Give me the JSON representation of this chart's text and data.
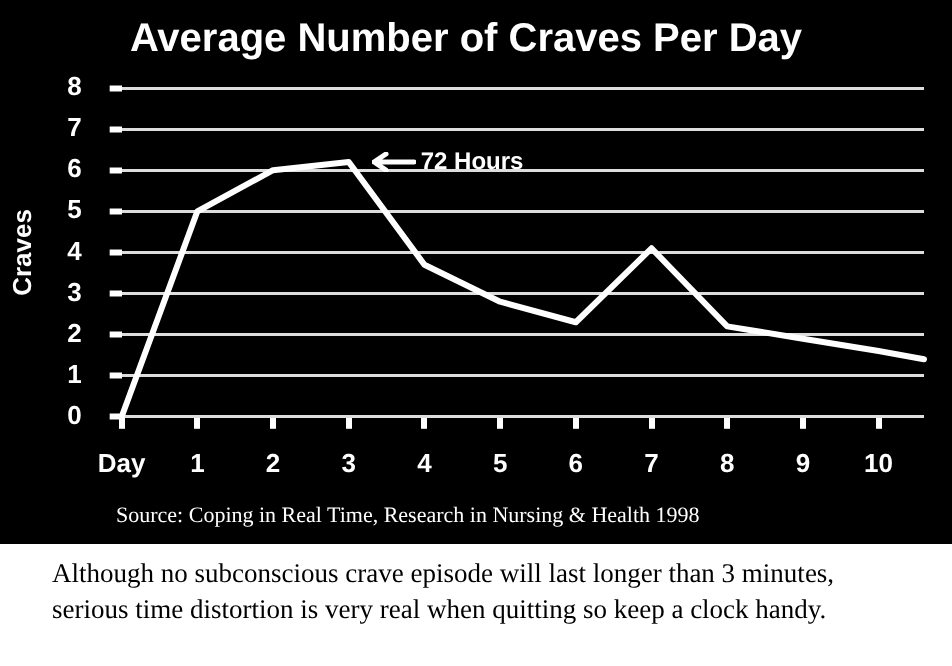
{
  "chart_data": {
    "type": "line",
    "title": "Average Number of Craves Per Day",
    "ylabel": "Craves",
    "x": [
      0,
      1,
      2,
      3,
      4,
      5,
      6,
      7,
      8,
      9,
      10,
      10.6
    ],
    "series": [
      {
        "color": "#ffffff",
        "values": [
          0,
          5.0,
          6.0,
          6.2,
          3.7,
          2.8,
          2.3,
          4.1,
          2.2,
          1.9,
          1.6,
          1.4
        ]
      }
    ],
    "xlim": [
      0,
      10.6
    ],
    "xticks": [
      {
        "value": 0,
        "label": "Day"
      },
      1,
      2,
      3,
      4,
      5,
      6,
      7,
      8,
      9,
      10
    ],
    "ylim": [
      0,
      8
    ],
    "yticks": [
      0,
      1,
      2,
      3,
      4,
      5,
      6,
      7,
      8
    ],
    "grid": "y",
    "legend": false,
    "marker": "none",
    "line_style": "solid",
    "annotations": [
      {
        "text": "72 Hours",
        "x": 3,
        "y": 6.2
      },
      "Source:  Coping in Real Time, Research in Nursing & Health 1998",
      "Although no subconscious crave episode will last longer than 3 minutes, serious time distortion is very real when quitting so keep a clock handy."
    ]
  }
}
